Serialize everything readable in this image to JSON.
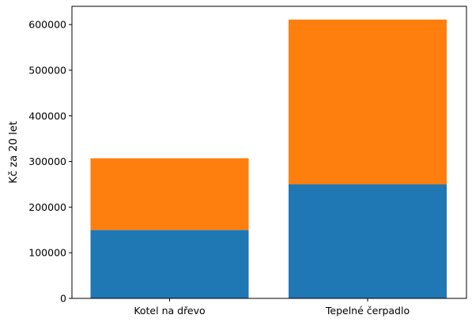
{
  "chart_data": {
    "type": "bar",
    "stacked": true,
    "categories": [
      "Kotel na dřevo",
      "Tepelné čerpadlo"
    ],
    "series": [
      {
        "color": "#1f77b4",
        "values": [
          150000,
          250000
        ]
      },
      {
        "color": "#ff7f0e",
        "values": [
          157000,
          361000
        ]
      }
    ],
    "title": "",
    "xlabel": "",
    "ylabel": "Kč za 20 let",
    "ylim": [
      0,
      640000
    ],
    "yticks": [
      0,
      100000,
      200000,
      300000,
      400000,
      500000,
      600000
    ],
    "ytick_labels": [
      "0",
      "100000",
      "200000",
      "300000",
      "400000",
      "500000",
      "600000"
    ],
    "grid": false,
    "legend": false
  }
}
